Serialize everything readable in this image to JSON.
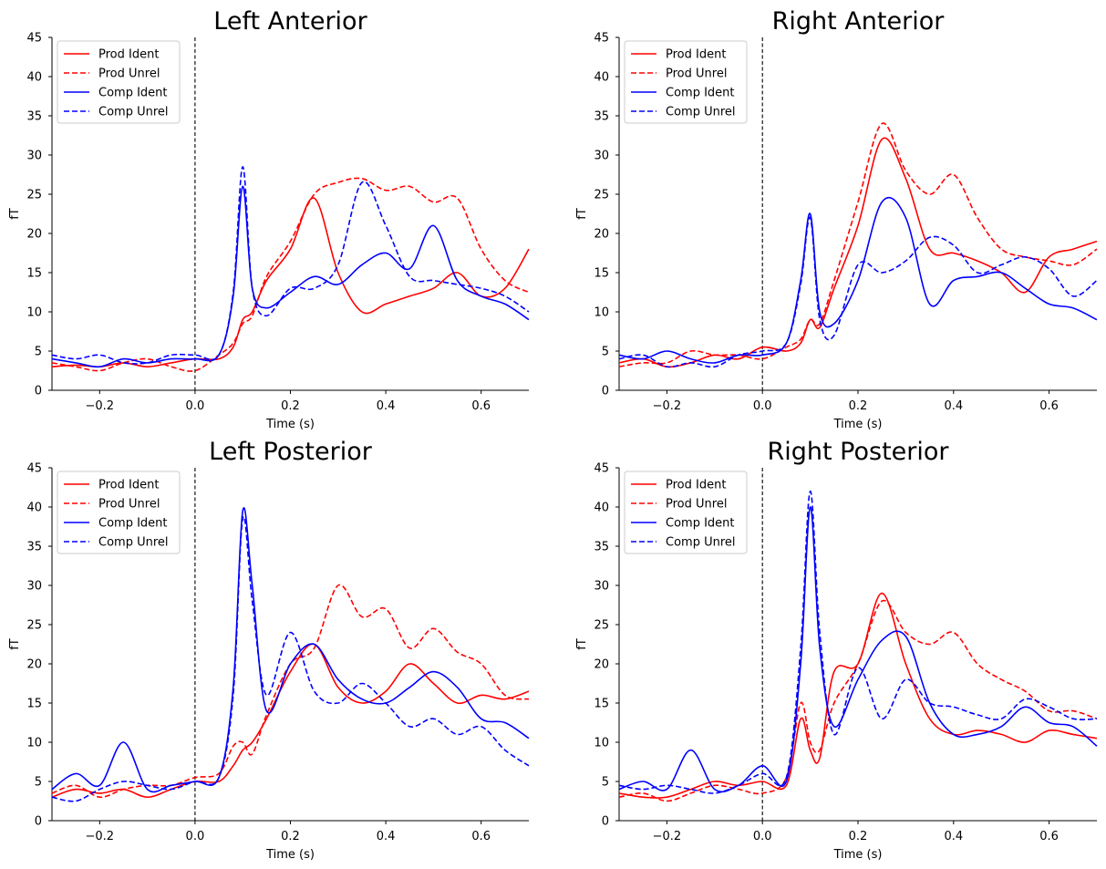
{
  "figure": {
    "panel_titles": [
      "Left Anterior",
      "Right Anterior",
      "Left Posterior",
      "Right Posterior"
    ]
  },
  "chart_data": [
    {
      "type": "line",
      "title": "Left Anterior",
      "xlabel": "Time (s)",
      "ylabel": "fT",
      "xlim": [
        -0.3,
        0.7
      ],
      "ylim": [
        0,
        45
      ],
      "xticks": [
        -0.2,
        0.0,
        0.2,
        0.4,
        0.6
      ],
      "xtick_labels": [
        "−0.2",
        "0.0",
        "0.2",
        "0.4",
        "0.6"
      ],
      "yticks": [
        0,
        5,
        10,
        15,
        20,
        25,
        30,
        35,
        40,
        45
      ],
      "ytick_labels": [
        "0",
        "5",
        "10",
        "15",
        "20",
        "25",
        "30",
        "35",
        "40",
        "45"
      ],
      "vline_x": 0.0,
      "legend_position": "upper-left",
      "x": [
        -0.3,
        -0.25,
        -0.2,
        -0.15,
        -0.1,
        -0.05,
        0.0,
        0.05,
        0.08,
        0.1,
        0.12,
        0.15,
        0.2,
        0.25,
        0.3,
        0.35,
        0.4,
        0.45,
        0.5,
        0.55,
        0.6,
        0.65,
        0.7
      ],
      "series": [
        {
          "name": "Prod Ident",
          "color": "#ff0000",
          "dash": "solid",
          "values": [
            3.0,
            3.2,
            3.0,
            3.5,
            3.0,
            3.5,
            4.0,
            4.0,
            5.5,
            9.0,
            10.0,
            14.0,
            18.0,
            24.5,
            15.0,
            10.0,
            11.0,
            12.0,
            13.0,
            15.0,
            12.0,
            13.0,
            18.0
          ]
        },
        {
          "name": "Prod Unrel",
          "color": "#ff0000",
          "dash": "dashed",
          "values": [
            3.5,
            3.0,
            2.5,
            3.5,
            4.0,
            3.0,
            2.5,
            4.5,
            6.0,
            8.5,
            9.5,
            14.5,
            19.0,
            25.0,
            26.5,
            27.0,
            25.5,
            26.0,
            24.0,
            24.5,
            18.0,
            14.0,
            12.5
          ]
        },
        {
          "name": "Comp Ident",
          "color": "#0000ff",
          "dash": "solid",
          "values": [
            4.0,
            3.5,
            3.0,
            4.0,
            3.5,
            4.0,
            4.0,
            4.5,
            12.0,
            26.0,
            13.0,
            10.5,
            12.5,
            14.5,
            13.5,
            16.0,
            17.5,
            15.5,
            21.0,
            14.0,
            12.0,
            11.0,
            9.0
          ]
        },
        {
          "name": "Comp Unrel",
          "color": "#0000ff",
          "dash": "dashed",
          "values": [
            4.5,
            4.0,
            4.5,
            3.5,
            3.5,
            4.5,
            4.5,
            4.5,
            12.5,
            28.5,
            13.0,
            9.5,
            13.0,
            13.0,
            16.0,
            26.5,
            21.0,
            14.5,
            14.0,
            13.5,
            13.0,
            12.0,
            10.0
          ]
        }
      ]
    },
    {
      "type": "line",
      "title": "Right Anterior",
      "xlabel": "Time (s)",
      "ylabel": "fT",
      "xlim": [
        -0.3,
        0.7
      ],
      "ylim": [
        0,
        45
      ],
      "xticks": [
        -0.2,
        0.0,
        0.2,
        0.4,
        0.6
      ],
      "xtick_labels": [
        "−0.2",
        "0.0",
        "0.2",
        "0.4",
        "0.6"
      ],
      "yticks": [
        0,
        5,
        10,
        15,
        20,
        25,
        30,
        35,
        40,
        45
      ],
      "ytick_labels": [
        "0",
        "5",
        "10",
        "15",
        "20",
        "25",
        "30",
        "35",
        "40",
        "45"
      ],
      "vline_x": 0.0,
      "legend_position": "upper-left",
      "x": [
        -0.3,
        -0.25,
        -0.2,
        -0.15,
        -0.1,
        -0.05,
        0.0,
        0.05,
        0.08,
        0.1,
        0.12,
        0.15,
        0.2,
        0.25,
        0.3,
        0.35,
        0.4,
        0.45,
        0.5,
        0.55,
        0.6,
        0.65,
        0.7
      ],
      "series": [
        {
          "name": "Prod Ident",
          "color": "#ff0000",
          "dash": "solid",
          "values": [
            3.5,
            4.0,
            3.0,
            3.5,
            4.5,
            4.0,
            5.5,
            5.0,
            6.0,
            9.0,
            8.0,
            13.0,
            21.0,
            32.0,
            27.0,
            18.0,
            17.5,
            16.5,
            15.0,
            12.5,
            17.0,
            18.0,
            19.0
          ]
        },
        {
          "name": "Prod Unrel",
          "color": "#ff0000",
          "dash": "dashed",
          "values": [
            3.0,
            3.5,
            3.5,
            5.0,
            4.5,
            4.5,
            4.0,
            5.5,
            6.5,
            9.0,
            8.5,
            14.0,
            24.0,
            34.0,
            28.0,
            25.0,
            27.5,
            22.0,
            18.0,
            17.0,
            16.5,
            16.0,
            18.0
          ]
        },
        {
          "name": "Comp Ident",
          "color": "#0000ff",
          "dash": "solid",
          "values": [
            4.5,
            4.0,
            5.0,
            4.0,
            3.5,
            4.5,
            4.5,
            6.0,
            14.0,
            22.5,
            10.0,
            8.5,
            14.0,
            24.0,
            22.0,
            11.0,
            14.0,
            14.5,
            15.0,
            13.0,
            11.0,
            10.5,
            9.0
          ]
        },
        {
          "name": "Comp Unrel",
          "color": "#0000ff",
          "dash": "dashed",
          "values": [
            4.0,
            4.5,
            3.0,
            3.5,
            3.0,
            4.5,
            5.0,
            6.0,
            13.5,
            22.0,
            9.0,
            7.0,
            16.0,
            15.0,
            16.5,
            19.5,
            18.5,
            15.0,
            16.0,
            17.0,
            15.5,
            12.0,
            14.0
          ]
        }
      ]
    },
    {
      "type": "line",
      "title": "Left Posterior",
      "xlabel": "Time (s)",
      "ylabel": "fT",
      "xlim": [
        -0.3,
        0.7
      ],
      "ylim": [
        0,
        45
      ],
      "xticks": [
        -0.2,
        0.0,
        0.2,
        0.4,
        0.6
      ],
      "xtick_labels": [
        "−0.2",
        "0.0",
        "0.2",
        "0.4",
        "0.6"
      ],
      "yticks": [
        0,
        5,
        10,
        15,
        20,
        25,
        30,
        35,
        40,
        45
      ],
      "ytick_labels": [
        "0",
        "5",
        "10",
        "15",
        "20",
        "25",
        "30",
        "35",
        "40",
        "45"
      ],
      "vline_x": 0.0,
      "legend_position": "upper-left",
      "x": [
        -0.3,
        -0.25,
        -0.2,
        -0.15,
        -0.1,
        -0.05,
        0.0,
        0.05,
        0.08,
        0.1,
        0.12,
        0.15,
        0.2,
        0.25,
        0.3,
        0.35,
        0.4,
        0.45,
        0.5,
        0.55,
        0.6,
        0.65,
        0.7
      ],
      "series": [
        {
          "name": "Prod Ident",
          "color": "#ff0000",
          "dash": "solid",
          "values": [
            3.0,
            4.0,
            3.5,
            4.0,
            3.0,
            4.0,
            5.0,
            5.0,
            7.0,
            9.0,
            10.0,
            13.0,
            19.0,
            22.5,
            17.0,
            15.0,
            16.5,
            20.0,
            17.5,
            15.0,
            16.0,
            15.5,
            16.5
          ]
        },
        {
          "name": "Prod Unrel",
          "color": "#ff0000",
          "dash": "dashed",
          "values": [
            3.5,
            4.5,
            3.0,
            4.0,
            4.5,
            4.5,
            5.5,
            6.0,
            9.5,
            10.0,
            8.5,
            13.5,
            20.0,
            22.0,
            30.0,
            26.0,
            27.0,
            22.0,
            24.5,
            21.5,
            20.0,
            16.0,
            15.5
          ]
        },
        {
          "name": "Comp Ident",
          "color": "#0000ff",
          "dash": "solid",
          "values": [
            4.0,
            6.0,
            4.5,
            10.0,
            4.0,
            4.5,
            5.0,
            5.5,
            17.0,
            39.5,
            30.0,
            14.0,
            20.0,
            22.5,
            18.0,
            15.5,
            15.0,
            17.0,
            19.0,
            17.0,
            13.0,
            12.5,
            10.5
          ]
        },
        {
          "name": "Comp Unrel",
          "color": "#0000ff",
          "dash": "dashed",
          "values": [
            3.0,
            2.5,
            4.0,
            5.0,
            4.5,
            4.0,
            5.0,
            5.5,
            16.0,
            38.5,
            28.0,
            16.0,
            24.0,
            16.5,
            15.0,
            17.5,
            15.0,
            12.0,
            13.0,
            11.0,
            12.0,
            9.0,
            7.0
          ]
        }
      ]
    },
    {
      "type": "line",
      "title": "Right Posterior",
      "xlabel": "Time (s)",
      "ylabel": "fT",
      "xlim": [
        -0.3,
        0.7
      ],
      "ylim": [
        0,
        45
      ],
      "xticks": [
        -0.2,
        0.0,
        0.2,
        0.4,
        0.6
      ],
      "xtick_labels": [
        "−0.2",
        "0.0",
        "0.2",
        "0.4",
        "0.6"
      ],
      "yticks": [
        0,
        5,
        10,
        15,
        20,
        25,
        30,
        35,
        40,
        45
      ],
      "ytick_labels": [
        "0",
        "5",
        "10",
        "15",
        "20",
        "25",
        "30",
        "35",
        "40",
        "45"
      ],
      "vline_x": 0.0,
      "legend_position": "upper-left",
      "x": [
        -0.3,
        -0.25,
        -0.2,
        -0.15,
        -0.1,
        -0.05,
        0.0,
        0.05,
        0.08,
        0.1,
        0.12,
        0.15,
        0.2,
        0.25,
        0.3,
        0.35,
        0.4,
        0.45,
        0.5,
        0.55,
        0.6,
        0.65,
        0.7
      ],
      "series": [
        {
          "name": "Prod Ident",
          "color": "#ff0000",
          "dash": "solid",
          "values": [
            3.5,
            3.0,
            3.0,
            4.0,
            5.0,
            4.5,
            5.0,
            4.5,
            13.0,
            9.0,
            8.0,
            19.0,
            20.0,
            29.0,
            20.0,
            13.0,
            11.0,
            11.5,
            11.0,
            10.0,
            11.5,
            11.0,
            10.5
          ]
        },
        {
          "name": "Prod Unrel",
          "color": "#ff0000",
          "dash": "dashed",
          "values": [
            3.0,
            3.5,
            2.5,
            3.5,
            4.5,
            4.0,
            3.5,
            5.5,
            15.0,
            10.0,
            9.0,
            15.0,
            20.0,
            28.0,
            24.0,
            22.5,
            24.0,
            20.0,
            18.0,
            16.5,
            14.0,
            14.0,
            13.0
          ]
        },
        {
          "name": "Comp Ident",
          "color": "#0000ff",
          "dash": "solid",
          "values": [
            4.0,
            5.0,
            4.0,
            9.0,
            4.0,
            4.5,
            7.0,
            5.0,
            20.0,
            40.0,
            22.0,
            12.0,
            18.0,
            23.0,
            23.5,
            15.0,
            11.0,
            11.0,
            12.0,
            14.5,
            12.5,
            12.0,
            9.5
          ]
        },
        {
          "name": "Comp Unrel",
          "color": "#0000ff",
          "dash": "dashed",
          "values": [
            4.5,
            4.0,
            4.5,
            4.0,
            3.5,
            4.5,
            6.0,
            5.5,
            22.0,
            42.0,
            24.0,
            11.0,
            19.5,
            13.0,
            18.0,
            15.0,
            14.5,
            13.5,
            13.0,
            15.5,
            14.5,
            13.0,
            13.0
          ]
        }
      ]
    }
  ]
}
